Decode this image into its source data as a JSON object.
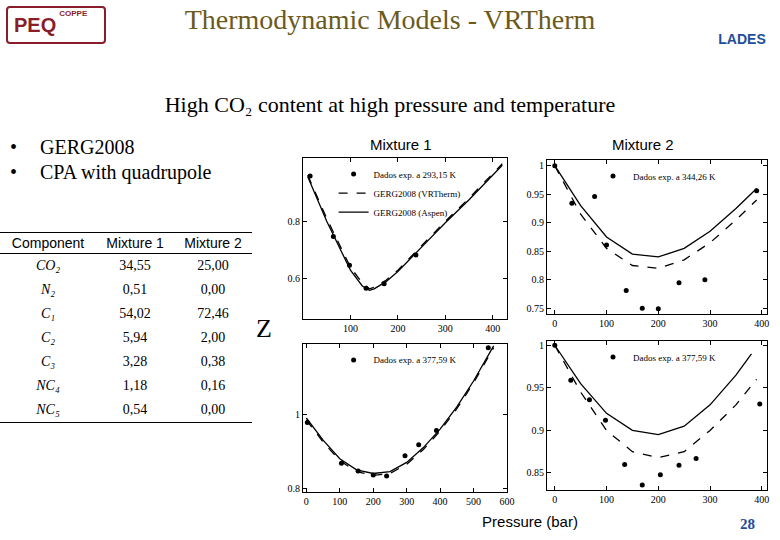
{
  "slide": {
    "title": "Thermodynamic Models - VRTherm",
    "logos": {
      "left": "PEQ",
      "left_sub": "COPPE",
      "right": "LADES"
    },
    "subtitle": "High CO₂ content at high pressure and temperature",
    "bullets": [
      "GERG2008",
      "CPA with quadrupole"
    ],
    "table": {
      "header": [
        "Component",
        "Mixture 1",
        "Mixture 2"
      ],
      "rows": [
        [
          "CO₂",
          "34,55",
          "25,00"
        ],
        [
          "N₂",
          "0,51",
          "0,00"
        ],
        [
          "C₁",
          "54,02",
          "72,46"
        ],
        [
          "C₂",
          "5,94",
          "2,00"
        ],
        [
          "C₃",
          "3,28",
          "0,38"
        ],
        [
          "NC₄",
          "1,18",
          "0,16"
        ],
        [
          "NC₅",
          "0,54",
          "0,00"
        ]
      ]
    },
    "y_label": "Z",
    "x_label": "Pressure (bar)",
    "page": "28"
  },
  "chart_data": [
    {
      "type": "line",
      "title": "Mixture 1",
      "xlim": [
        0,
        430
      ],
      "ylim": [
        0.46,
        1.02
      ],
      "xticks": [
        100,
        200,
        300,
        400
      ],
      "yticks": [
        0.6,
        0.8
      ],
      "grid": false,
      "legend": "upper left",
      "series": [
        {
          "name": "Dados exp. a 293,15 K",
          "type": "scatter",
          "marker": "circle",
          "color": "#000000",
          "x": [
            15,
            64,
            98,
            133,
            171,
            238
          ],
          "values": [
            0.957,
            0.747,
            0.647,
            0.567,
            0.583,
            0.683
          ]
        },
        {
          "name": "GERG2008 (VRTherm)",
          "type": "line",
          "line_style": "dashed",
          "color": "#000000",
          "x": [
            10,
            50,
            100,
            125,
            140,
            150,
            175,
            200,
            250,
            300,
            350,
            400,
            420
          ],
          "values": [
            0.96,
            0.81,
            0.64,
            0.585,
            0.565,
            0.57,
            0.595,
            0.63,
            0.715,
            0.8,
            0.88,
            0.965,
            1.0
          ]
        },
        {
          "name": "GERG2008 (Aspen)",
          "type": "line",
          "line_style": "solid",
          "color": "#000000",
          "x": [
            10,
            50,
            100,
            125,
            140,
            150,
            175,
            200,
            250,
            300,
            350,
            400,
            420
          ],
          "values": [
            0.955,
            0.8,
            0.63,
            0.575,
            0.56,
            0.565,
            0.59,
            0.625,
            0.71,
            0.795,
            0.875,
            0.96,
            0.995
          ]
        }
      ]
    },
    {
      "type": "line",
      "title": "Mixture 2",
      "xlim": [
        -15,
        410
      ],
      "ylim": [
        0.74,
        1.01
      ],
      "xticks": [
        0,
        100,
        200,
        300,
        400
      ],
      "yticks": [
        0.75,
        0.8,
        0.85,
        0.9,
        0.95,
        1
      ],
      "grid": false,
      "legend": "upper center",
      "series": [
        {
          "name": "Dados exp. a 344,26 K",
          "type": "scatter",
          "marker": "circle",
          "color": "#000000",
          "x": [
            0,
            33,
            77,
            100,
            138,
            169,
            200,
            240,
            290,
            390
          ],
          "values": [
            1.0,
            0.934,
            0.946,
            0.861,
            0.781,
            0.75,
            0.749,
            0.795,
            0.8,
            0.956
          ]
        },
        {
          "type": "line",
          "line_style": "solid",
          "color": "#000000",
          "x": [
            0,
            50,
            100,
            150,
            200,
            250,
            300,
            350,
            390
          ],
          "values": [
            1.0,
            0.93,
            0.875,
            0.845,
            0.84,
            0.855,
            0.885,
            0.925,
            0.96
          ]
        },
        {
          "type": "line",
          "line_style": "dashed",
          "color": "#000000",
          "x": [
            0,
            50,
            100,
            150,
            200,
            250,
            300,
            350,
            390
          ],
          "values": [
            1.0,
            0.915,
            0.855,
            0.825,
            0.82,
            0.835,
            0.865,
            0.905,
            0.94
          ]
        }
      ]
    },
    {
      "type": "line",
      "xlim": [
        -10,
        600
      ],
      "ylim": [
        0.79,
        1.19
      ],
      "xticks": [
        0,
        100,
        200,
        300,
        400,
        500,
        600
      ],
      "yticks": [
        0.8,
        1
      ],
      "grid": false,
      "legend": "upper left",
      "series": [
        {
          "name": "Dados exp. a 377,59 K",
          "type": "scatter",
          "marker": "circle",
          "color": "#000000",
          "x": [
            3,
            105,
            155,
            200,
            240,
            295,
            336,
            389,
            544
          ],
          "values": [
            0.978,
            0.868,
            0.847,
            0.836,
            0.833,
            0.888,
            0.918,
            0.956,
            1.18
          ]
        },
        {
          "type": "line",
          "line_style": "solid",
          "color": "#000000",
          "x": [
            0,
            50,
            100,
            150,
            200,
            250,
            300,
            350,
            400,
            450,
            500,
            550,
            560
          ],
          "values": [
            0.99,
            0.93,
            0.88,
            0.85,
            0.84,
            0.845,
            0.87,
            0.91,
            0.96,
            1.02,
            1.09,
            1.17,
            1.185
          ]
        },
        {
          "type": "line",
          "line_style": "dashed",
          "color": "#000000",
          "x": [
            0,
            50,
            100,
            150,
            200,
            250,
            300,
            350,
            400,
            450,
            500,
            550,
            560
          ],
          "values": [
            0.985,
            0.925,
            0.875,
            0.845,
            0.835,
            0.84,
            0.865,
            0.905,
            0.955,
            1.015,
            1.085,
            1.165,
            1.18
          ]
        }
      ]
    },
    {
      "type": "line",
      "xlim": [
        -15,
        410
      ],
      "ylim": [
        0.83,
        1.005
      ],
      "xticks": [
        0,
        100,
        200,
        300,
        400
      ],
      "yticks": [
        0.85,
        0.9,
        0.95,
        1
      ],
      "grid": false,
      "legend": "upper center",
      "series": [
        {
          "name": "Dados exp. a 377,59 K",
          "type": "scatter",
          "marker": "circle",
          "color": "#000000",
          "x": [
            0,
            31,
            67,
            98,
            135,
            169,
            204,
            240,
            273,
            396
          ],
          "values": [
            1.0,
            0.959,
            0.936,
            0.912,
            0.86,
            0.836,
            0.848,
            0.859,
            0.867,
            0.931
          ]
        },
        {
          "type": "line",
          "line_style": "solid",
          "color": "#000000",
          "x": [
            0,
            50,
            100,
            150,
            200,
            250,
            300,
            350,
            380
          ],
          "values": [
            1.0,
            0.955,
            0.92,
            0.9,
            0.895,
            0.905,
            0.93,
            0.965,
            0.99
          ]
        },
        {
          "type": "line",
          "line_style": "dashed",
          "color": "#000000",
          "x": [
            0,
            50,
            100,
            150,
            200,
            250,
            300,
            350,
            390
          ],
          "values": [
            1.0,
            0.945,
            0.9,
            0.875,
            0.868,
            0.875,
            0.9,
            0.93,
            0.96
          ]
        }
      ]
    }
  ]
}
